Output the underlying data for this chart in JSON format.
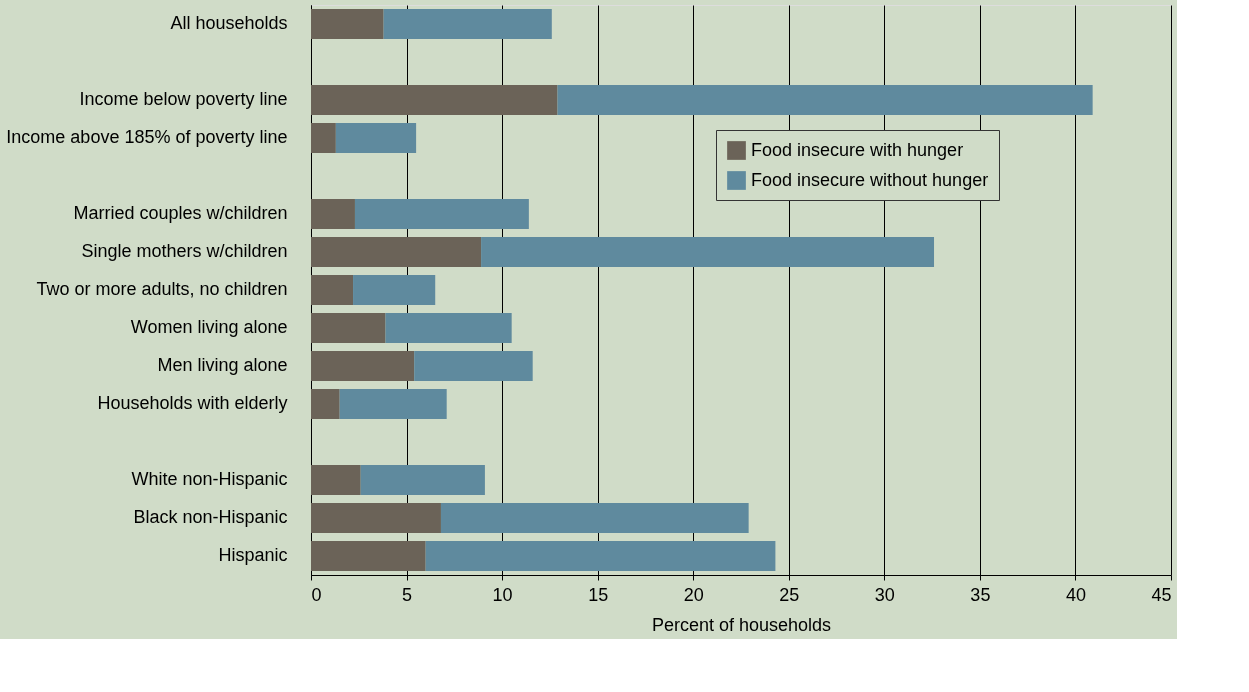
{
  "chart_data": {
    "type": "bar",
    "orientation": "horizontal",
    "stacked": true,
    "categories": [
      "All households",
      null,
      "Income below poverty line",
      "Income above 185% of poverty line",
      null,
      "Married couples w/children",
      "Single mothers w/children",
      "Two or more adults, no children",
      "Women living alone",
      "Men living alone",
      "Households with elderly",
      null,
      "White non-Hispanic",
      "Black non-Hispanic",
      "Hispanic"
    ],
    "series": [
      {
        "name": "Food insecure with hunger",
        "color": "#6b6358",
        "values": [
          3.8,
          null,
          12.9,
          1.3,
          null,
          2.3,
          8.9,
          2.2,
          3.9,
          5.4,
          1.5,
          null,
          2.6,
          6.8,
          6.0
        ]
      },
      {
        "name": "Food insecure without hunger",
        "color": "#5f8a9e",
        "values": [
          8.8,
          null,
          28.0,
          4.2,
          null,
          9.1,
          23.7,
          4.3,
          6.6,
          6.2,
          5.6,
          null,
          6.5,
          16.1,
          18.3
        ]
      }
    ],
    "xlabel": "Percent of households",
    "xlim": [
      0,
      45
    ],
    "xticks": [
      0,
      5,
      10,
      15,
      20,
      25,
      30,
      35,
      40,
      45
    ],
    "grid": "x",
    "legend": "top right"
  }
}
